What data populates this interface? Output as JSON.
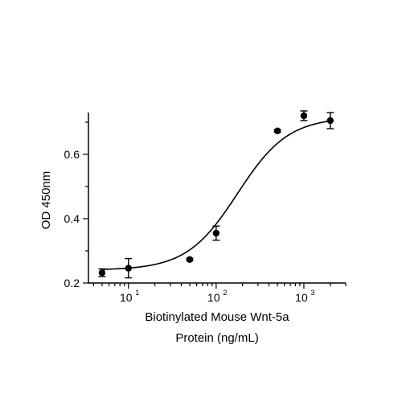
{
  "chart_data": {
    "type": "scatter",
    "title": "",
    "xlabel_lines": [
      "Biotinylated Mouse Wnt-5a",
      "Protein (ng/mL)"
    ],
    "ylabel": "OD 450nm",
    "x_scale": "log",
    "xlim": [
      3.5,
      3000
    ],
    "ylim": [
      0.2,
      0.73
    ],
    "x_ticks": [
      {
        "value": 10,
        "base": "10",
        "exp": "1"
      },
      {
        "value": 100,
        "base": "10",
        "exp": "2"
      },
      {
        "value": 1000,
        "base": "10",
        "exp": "3"
      }
    ],
    "y_ticks": [
      {
        "value": 0.2,
        "label": "0.2"
      },
      {
        "value": 0.4,
        "label": "0.4"
      },
      {
        "value": 0.6,
        "label": "0.6"
      }
    ],
    "grid": false,
    "series": [
      {
        "points": [
          {
            "x": 5,
            "y": 0.232,
            "err": 0.012
          },
          {
            "x": 10,
            "y": 0.246,
            "err": 0.03
          },
          {
            "x": 50,
            "y": 0.273,
            "err": 0.004
          },
          {
            "x": 100,
            "y": 0.355,
            "err": 0.022
          },
          {
            "x": 500,
            "y": 0.673,
            "err": 0.004
          },
          {
            "x": 1000,
            "y": 0.72,
            "err": 0.015
          },
          {
            "x": 2000,
            "y": 0.705,
            "err": 0.025
          }
        ],
        "fit": {
          "model": "4PL",
          "bottom": 0.24,
          "top": 0.716,
          "ec50": 175,
          "hill": 1.5
        }
      }
    ]
  }
}
